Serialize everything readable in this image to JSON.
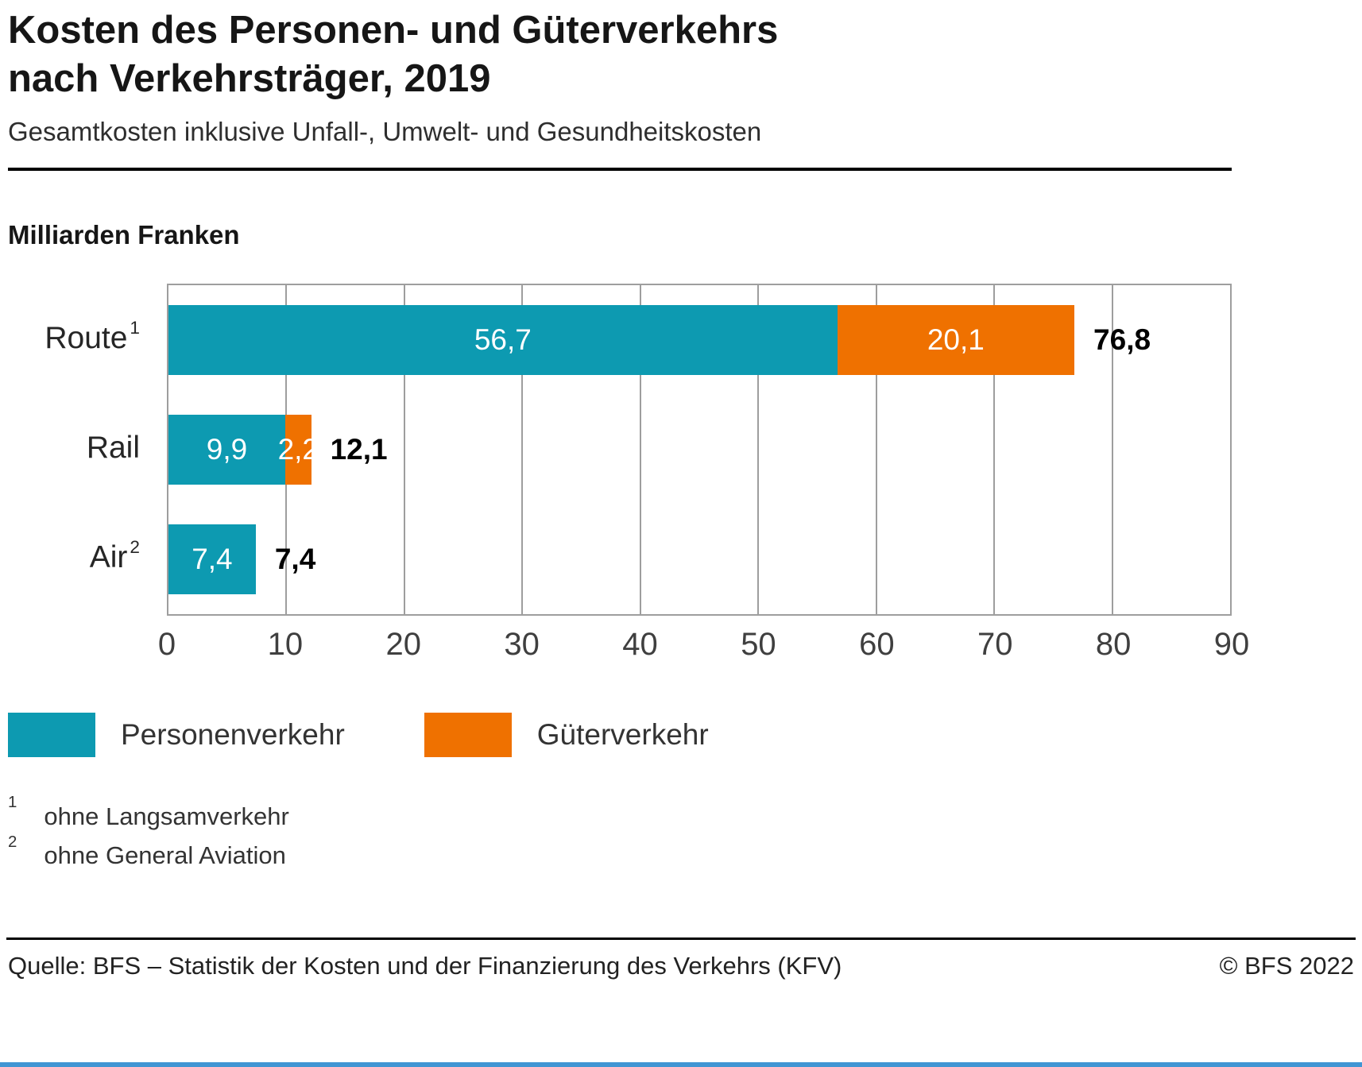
{
  "header": {
    "title_line1": "Kosten des Personen- und Güterverkehrs",
    "title_line2": "nach Verkehrsträger, 2019",
    "subtitle": "Gesamtkosten inklusive Unfall-, Umwelt- und Gesundheitskosten"
  },
  "chart_data": {
    "type": "bar",
    "orientation": "horizontal",
    "stacked": true,
    "unit_label": "Milliarden Franken",
    "categories": [
      "Route",
      "Rail",
      "Air"
    ],
    "category_superscripts": [
      "1",
      "",
      "2"
    ],
    "series": [
      {
        "name": "Personenverkehr",
        "color": "#0d9ab1",
        "values": [
          56.7,
          9.9,
          7.4
        ]
      },
      {
        "name": "Güterverkehr",
        "color": "#ef7100",
        "values": [
          20.1,
          2.2,
          0
        ]
      }
    ],
    "value_labels": [
      [
        "56,7",
        "20,1"
      ],
      [
        "9,9",
        "2,2"
      ],
      [
        "7,4",
        ""
      ]
    ],
    "totals": [
      "76,8",
      "12,1",
      "7,4"
    ],
    "xlim": [
      0,
      90
    ],
    "xticks": [
      0,
      10,
      20,
      30,
      40,
      50,
      60,
      70,
      80,
      90
    ],
    "grid": true,
    "legend_position": "bottom"
  },
  "footnotes": [
    {
      "marker": "1",
      "text": "ohne Langsamverkehr"
    },
    {
      "marker": "2",
      "text": "ohne General Aviation"
    }
  ],
  "footer": {
    "source": "Quelle: BFS –  Statistik der Kosten und der Finanzierung des Verkehrs (KFV)",
    "copyright": "© BFS 2022",
    "bar_color": "#4195d3"
  }
}
